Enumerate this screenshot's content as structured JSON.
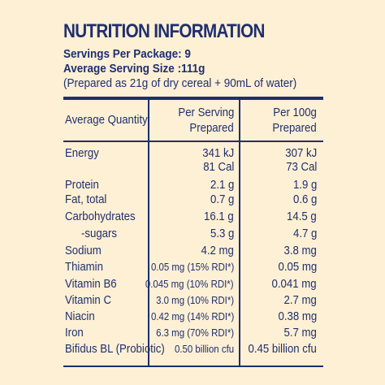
{
  "title": "NUTRITION INFORMATION",
  "servings_per_package": "Servings Per Package: 9",
  "average_serving_size": "Average Serving Size :111g",
  "preparation_note": "(Prepared as 21g of dry cereal + 90mL of water)",
  "columns": {
    "quantity": "Average Quantity",
    "per_serving_1": "Per Serving",
    "per_serving_2": "Prepared",
    "per_100g_1": "Per 100g",
    "per_100g_2": "Prepared"
  },
  "rows": [
    {
      "name": "Energy",
      "serving": "341 kJ",
      "per100": "307 kJ"
    },
    {
      "name": "",
      "serving": "81 Cal",
      "per100": "73 Cal"
    },
    {
      "name": "Protein",
      "serving": "2.1 g",
      "per100": "1.9 g"
    },
    {
      "name": "Fat, total",
      "serving": "0.7 g",
      "per100": "0.6 g"
    },
    {
      "name": "Carbohydrates",
      "serving": "16.1 g",
      "per100": "14.5 g"
    },
    {
      "name": "-sugars",
      "serving": "5.3 g",
      "per100": "4.7 g"
    },
    {
      "name": "Sodium",
      "serving": "4.2 mg",
      "per100": "3.8 mg"
    },
    {
      "name": "Thiamin",
      "serving": "0.05 mg (15% RDI*)",
      "per100": "0.05 mg"
    },
    {
      "name": "Vitamin B6",
      "serving": "0.045 mg (10% RDI*)",
      "per100": "0.041 mg"
    },
    {
      "name": "Vitamin C",
      "serving": "3.0 mg (10% RDI*)",
      "per100": "2.7 mg"
    },
    {
      "name": "Niacin",
      "serving": "0.42 mg (14% RDI*)",
      "per100": "0.38 mg"
    },
    {
      "name": "Iron",
      "serving": "6.3 mg (70% RDI*)",
      "per100": "5.7 mg"
    },
    {
      "name": "Bifidus BL (Probiotic)",
      "serving": "0.50 billion cfu",
      "per100": "0.45 billion cfu"
    }
  ],
  "colors": {
    "background": "#fdf0d5",
    "ink": "#1f2f6e"
  }
}
